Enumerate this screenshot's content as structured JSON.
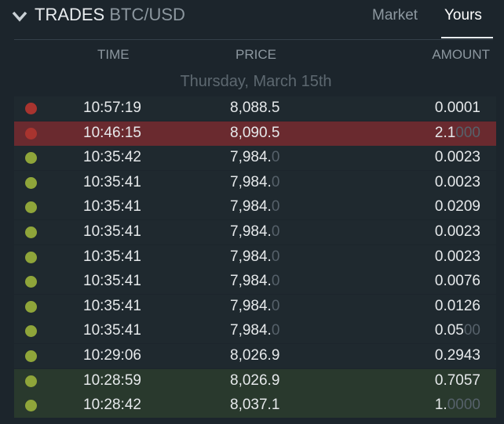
{
  "header": {
    "title": "TRADES",
    "pair": "BTC/USD",
    "tabs": [
      "Market",
      "Yours"
    ]
  },
  "columns": [
    "TIME",
    "PRICE",
    "AMOUNT"
  ],
  "date": "Thursday, March 15th",
  "rows": [
    {
      "color": "#a8342f",
      "time": "10:57:19",
      "price": "8,088.5",
      "amount": "0.0001"
    },
    {
      "color": "#a8342f",
      "time": "10:46:15",
      "price": "8,090.5",
      "amount": "2.1000"
    },
    {
      "color": "#8fa53a",
      "time": "10:35:42",
      "price": "7,984.0",
      "amount": "0.0023"
    },
    {
      "color": "#8fa53a",
      "time": "10:35:41",
      "price": "7,984.0",
      "amount": "0.0023"
    },
    {
      "color": "#8fa53a",
      "time": "10:35:41",
      "price": "7,984.0",
      "amount": "0.0209"
    },
    {
      "color": "#8fa53a",
      "time": "10:35:41",
      "price": "7,984.0",
      "amount": "0.0023"
    },
    {
      "color": "#8fa53a",
      "time": "10:35:41",
      "price": "7,984.0",
      "amount": "0.0023"
    },
    {
      "color": "#8fa53a",
      "time": "10:35:41",
      "price": "7,984.0",
      "amount": "0.0076"
    },
    {
      "color": "#8fa53a",
      "time": "10:35:41",
      "price": "7,984.0",
      "amount": "0.0126"
    },
    {
      "color": "#8fa53a",
      "time": "10:35:41",
      "price": "7,984.0",
      "amount": "0.0500"
    },
    {
      "color": "#8fa53a",
      "time": "10:29:06",
      "price": "8,026.9",
      "amount": "0.2943"
    },
    {
      "color": "#8fa53a",
      "time": "10:28:59",
      "price": "8,026.9",
      "amount": "0.7057"
    },
    {
      "color": "#8fa53a",
      "time": "10:28:42",
      "price": "8,037.1",
      "amount": "1.0000"
    }
  ]
}
